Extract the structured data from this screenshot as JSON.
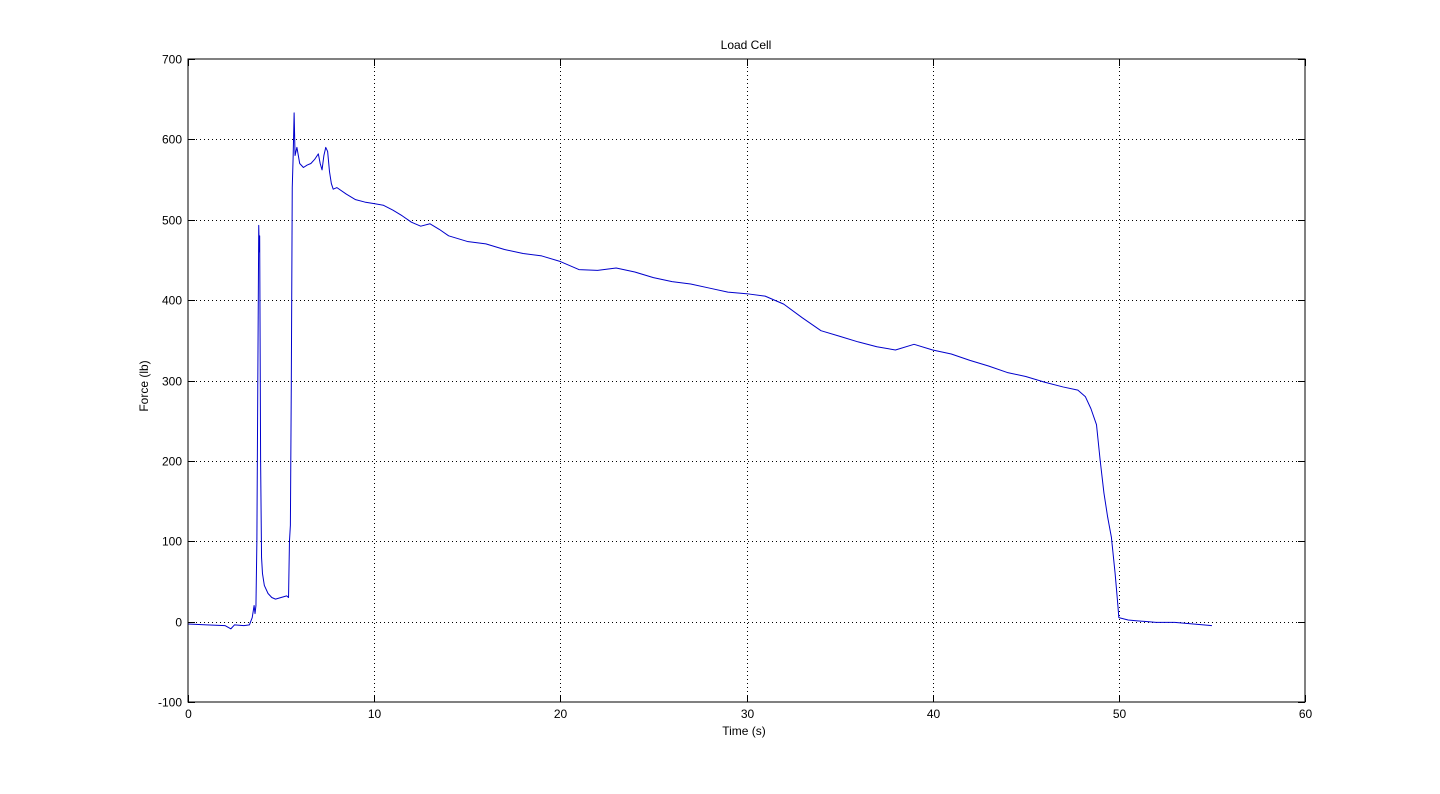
{
  "chart_data": {
    "type": "line",
    "title": "Load Cell",
    "xlabel": "Time (s)",
    "ylabel": "Force (lb)",
    "xlim": [
      0,
      60
    ],
    "ylim": [
      -100,
      700
    ],
    "xticks": [
      0,
      10,
      20,
      30,
      40,
      50,
      60
    ],
    "xtick_labels": [
      "0",
      "10",
      "20",
      "30",
      "40",
      "50",
      "60"
    ],
    "yticks": [
      -100,
      0,
      100,
      200,
      300,
      400,
      500,
      600,
      700
    ],
    "ytick_labels": [
      "-100",
      "0",
      "100",
      "200",
      "300",
      "400",
      "500",
      "600",
      "700"
    ],
    "grid": true,
    "grid_style": "dotted",
    "box": true,
    "colors": {
      "line": "#0000cc",
      "axes": "#000000",
      "grid": "#000000",
      "background": "#ffffff"
    },
    "series": [
      {
        "points": [
          [
            0.0,
            -3
          ],
          [
            1.0,
            -4
          ],
          [
            2.0,
            -5
          ],
          [
            2.3,
            -9
          ],
          [
            2.5,
            -4
          ],
          [
            3.0,
            -5
          ],
          [
            3.3,
            -4
          ],
          [
            3.45,
            5
          ],
          [
            3.55,
            20
          ],
          [
            3.6,
            10
          ],
          [
            3.65,
            20
          ],
          [
            3.7,
            100
          ],
          [
            3.75,
            300
          ],
          [
            3.8,
            493
          ],
          [
            3.83,
            460
          ],
          [
            3.85,
            480
          ],
          [
            3.9,
            200
          ],
          [
            3.95,
            80
          ],
          [
            4.0,
            60
          ],
          [
            4.1,
            45
          ],
          [
            4.3,
            35
          ],
          [
            4.5,
            30
          ],
          [
            4.7,
            28
          ],
          [
            5.0,
            30
          ],
          [
            5.3,
            32
          ],
          [
            5.4,
            30
          ],
          [
            5.45,
            100
          ],
          [
            5.5,
            120
          ],
          [
            5.55,
            300
          ],
          [
            5.6,
            540
          ],
          [
            5.65,
            580
          ],
          [
            5.7,
            633
          ],
          [
            5.75,
            580
          ],
          [
            5.85,
            590
          ],
          [
            6.0,
            570
          ],
          [
            6.2,
            565
          ],
          [
            6.4,
            568
          ],
          [
            6.6,
            570
          ],
          [
            6.8,
            575
          ],
          [
            7.0,
            582
          ],
          [
            7.1,
            570
          ],
          [
            7.2,
            562
          ],
          [
            7.3,
            580
          ],
          [
            7.4,
            590
          ],
          [
            7.5,
            585
          ],
          [
            7.6,
            560
          ],
          [
            7.7,
            545
          ],
          [
            7.8,
            538
          ],
          [
            8.0,
            540
          ],
          [
            8.5,
            532
          ],
          [
            9.0,
            525
          ],
          [
            9.5,
            522
          ],
          [
            10.0,
            520
          ],
          [
            10.5,
            518
          ],
          [
            11.0,
            512
          ],
          [
            11.5,
            505
          ],
          [
            12.0,
            497
          ],
          [
            12.5,
            492
          ],
          [
            13.0,
            495
          ],
          [
            13.5,
            488
          ],
          [
            14.0,
            480
          ],
          [
            15.0,
            473
          ],
          [
            16.0,
            470
          ],
          [
            17.0,
            463
          ],
          [
            18.0,
            458
          ],
          [
            19.0,
            455
          ],
          [
            20.0,
            448
          ],
          [
            21.0,
            438
          ],
          [
            22.0,
            437
          ],
          [
            23.0,
            440
          ],
          [
            24.0,
            435
          ],
          [
            25.0,
            428
          ],
          [
            26.0,
            423
          ],
          [
            27.0,
            420
          ],
          [
            28.0,
            415
          ],
          [
            29.0,
            410
          ],
          [
            30.0,
            408
          ],
          [
            31.0,
            405
          ],
          [
            32.0,
            395
          ],
          [
            33.0,
            378
          ],
          [
            34.0,
            362
          ],
          [
            35.0,
            355
          ],
          [
            36.0,
            348
          ],
          [
            37.0,
            342
          ],
          [
            38.0,
            338
          ],
          [
            39.0,
            345
          ],
          [
            40.0,
            338
          ],
          [
            41.0,
            333
          ],
          [
            42.0,
            325
          ],
          [
            43.0,
            318
          ],
          [
            44.0,
            310
          ],
          [
            45.0,
            305
          ],
          [
            46.0,
            298
          ],
          [
            47.0,
            292
          ],
          [
            47.8,
            288
          ],
          [
            48.2,
            280
          ],
          [
            48.5,
            265
          ],
          [
            48.8,
            245
          ],
          [
            49.0,
            200
          ],
          [
            49.2,
            160
          ],
          [
            49.4,
            130
          ],
          [
            49.6,
            105
          ],
          [
            49.8,
            60
          ],
          [
            49.95,
            20
          ],
          [
            50.0,
            5
          ],
          [
            50.5,
            2
          ],
          [
            51.0,
            1
          ],
          [
            52.0,
            -1
          ],
          [
            53.0,
            -1
          ],
          [
            54.0,
            -3
          ],
          [
            55.0,
            -5
          ]
        ]
      }
    ]
  }
}
